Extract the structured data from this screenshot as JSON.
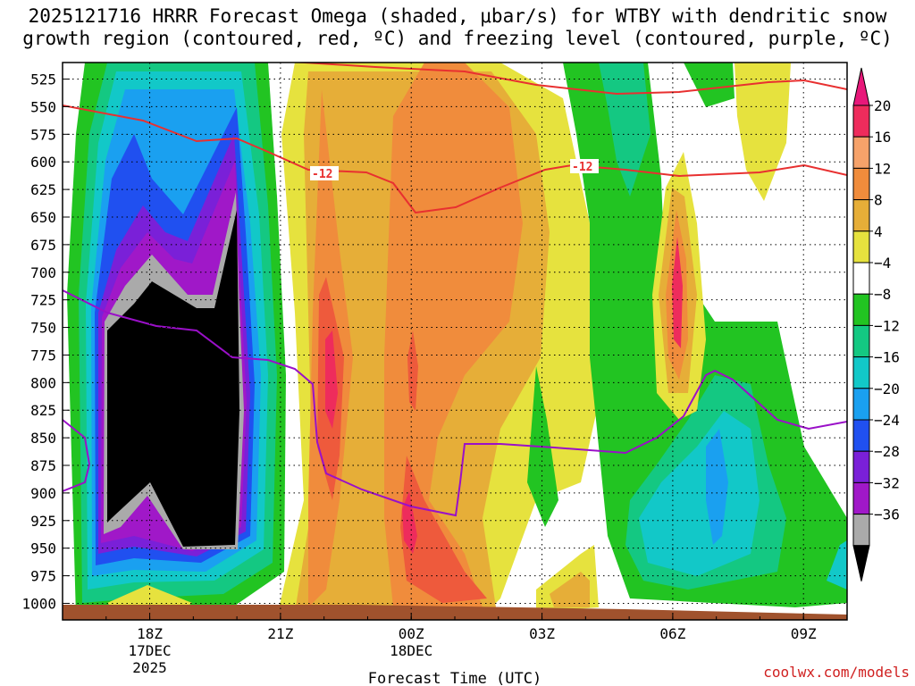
{
  "chart_data": {
    "type": "heatmap",
    "title_line1": "2025121716 HRRR Forecast Omega (shaded, μbar/s) for WTBY with dendritic snow",
    "title_line2": "growth region (contoured, red, ºC) and freezing level (contoured, purple, ºC)",
    "xlabel": "Forecast Time (UTC)",
    "y_ticks": [
      525,
      550,
      575,
      600,
      625,
      650,
      675,
      700,
      725,
      750,
      775,
      800,
      825,
      850,
      875,
      900,
      925,
      950,
      975,
      1000
    ],
    "x_ticks": [
      {
        "hour": 18,
        "label": "18Z",
        "sub1": "17DEC",
        "sub2": "2025"
      },
      {
        "hour": 21,
        "label": "21Z",
        "sub1": "",
        "sub2": ""
      },
      {
        "hour": 24,
        "label": "00Z",
        "sub1": "18DEC",
        "sub2": ""
      },
      {
        "hour": 27,
        "label": "03Z",
        "sub1": "",
        "sub2": ""
      },
      {
        "hour": 30,
        "label": "06Z",
        "sub1": "",
        "sub2": ""
      },
      {
        "hour": 33,
        "label": "09Z",
        "sub1": "",
        "sub2": ""
      }
    ],
    "xlim": [
      16,
      34
    ],
    "ylim": [
      510,
      1015
    ],
    "colorbar_labels": [
      "20",
      "16",
      "12",
      "8",
      "4",
      "−4",
      "−8",
      "−12",
      "−16",
      "−20",
      "−24",
      "−28",
      "−32",
      "−36"
    ],
    "colorbar_colors": [
      "#ee2c5c",
      "#f6a26a",
      "#f08c3c",
      "#e6ae38",
      "#e6e23e",
      "#ffffff",
      "#22c422",
      "#14c882",
      "#12c8c8",
      "#1aa0f0",
      "#2050f0",
      "#7a20d8",
      "#a018c8",
      "#aaaaaa"
    ],
    "red_contour_label": "-12",
    "credit": "coolwx.com/models"
  }
}
